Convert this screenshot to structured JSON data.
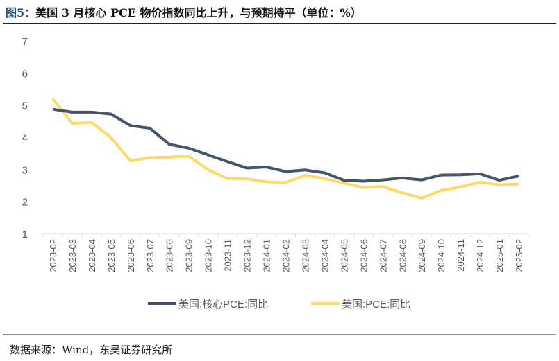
{
  "title_prefix": "图5：",
  "title": "美国 3 月核心 PCE 物价指数同比上升，与预期持平（单位：%）",
  "source": "数据来源：Wind，东吴证券研究所",
  "chart_data": {
    "type": "line",
    "categories": [
      "2023-02",
      "2023-03",
      "2023-04",
      "2023-05",
      "2023-06",
      "2023-07",
      "2023-08",
      "2023-09",
      "2023-10",
      "2023-11",
      "2023-12",
      "2024-01",
      "2024-02",
      "2024-03",
      "2024-04",
      "2024-05",
      "2024-06",
      "2024-07",
      "2024-08",
      "2024-09",
      "2024-10",
      "2024-11",
      "2024-12",
      "2025-01",
      "2025-02"
    ],
    "yticks": [
      1,
      2,
      3,
      4,
      5,
      6,
      7
    ],
    "ylim": [
      1,
      7
    ],
    "grid": false,
    "legend": "bottom",
    "series": [
      {
        "name": "美国:核心PCE:同比",
        "color": "#44546a",
        "values": [
          4.87,
          4.78,
          4.78,
          4.72,
          4.36,
          4.28,
          3.78,
          3.66,
          3.45,
          3.24,
          3.04,
          3.07,
          2.93,
          2.98,
          2.89,
          2.66,
          2.63,
          2.67,
          2.73,
          2.67,
          2.82,
          2.83,
          2.86,
          2.66,
          2.79
        ]
      },
      {
        "name": "美国:PCE:同比",
        "color": "#ffd966",
        "values": [
          5.2,
          4.43,
          4.46,
          3.99,
          3.26,
          3.37,
          3.38,
          3.41,
          2.99,
          2.71,
          2.7,
          2.61,
          2.59,
          2.81,
          2.71,
          2.57,
          2.43,
          2.46,
          2.27,
          2.1,
          2.34,
          2.45,
          2.6,
          2.52,
          2.54
        ]
      }
    ]
  }
}
